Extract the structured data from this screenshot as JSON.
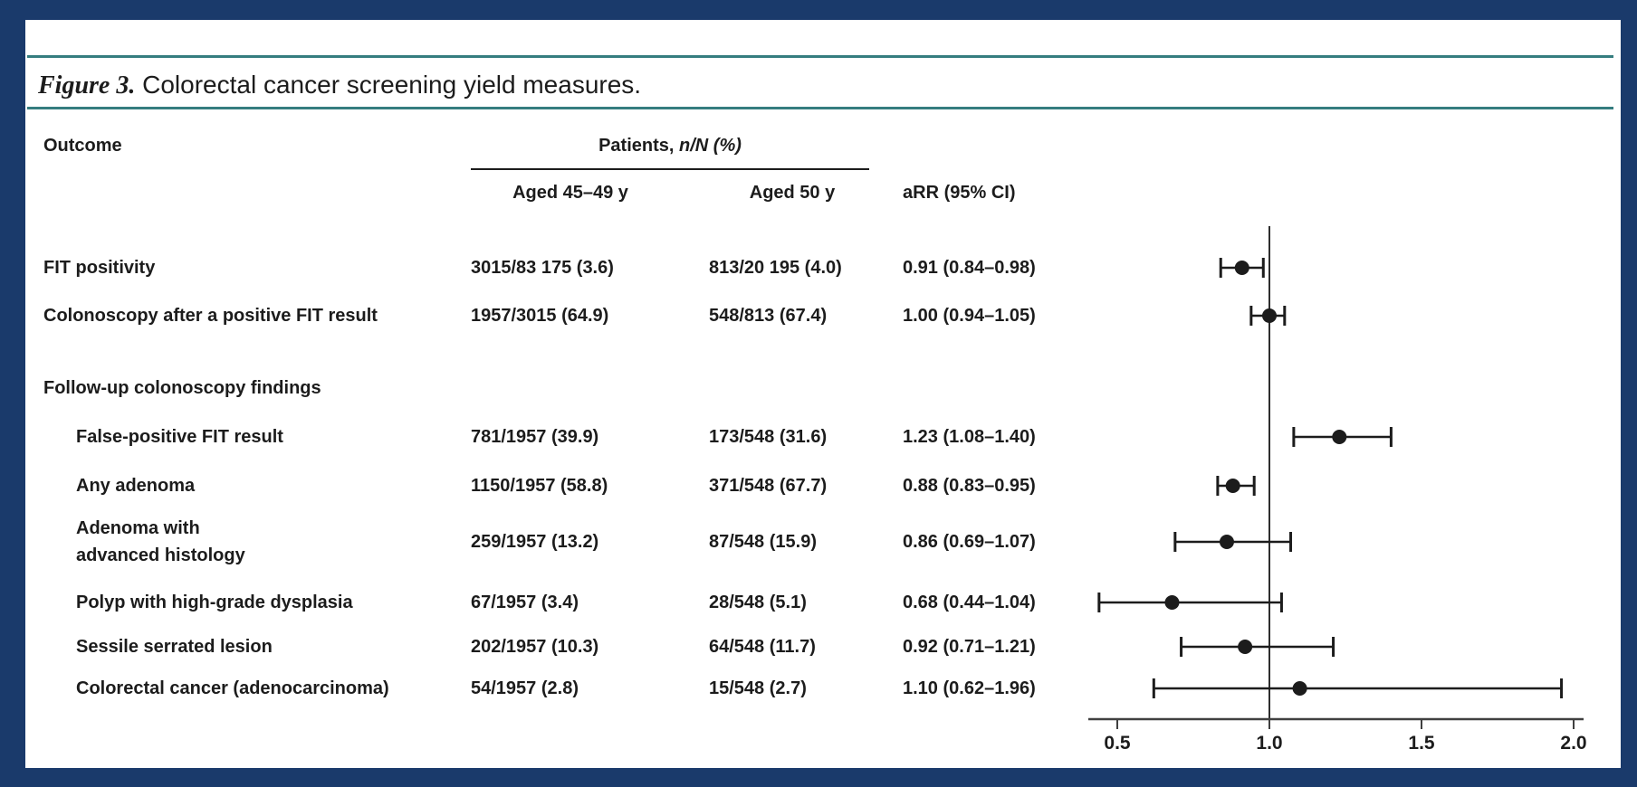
{
  "figure": {
    "label": "Figure 3.",
    "title": "Colorectal cancer screening yield measures."
  },
  "table": {
    "header": {
      "outcome": "Outcome",
      "patients_group_prefix": "Patients, ",
      "patients_group_italic": "n/N (%)",
      "aged_45_49": "Aged 45–49 y",
      "aged_50": "Aged 50 y",
      "arr": "aRR (95% CI)"
    },
    "rows": [
      {
        "type": "data",
        "indent": false,
        "label": "FIT positivity",
        "aged_45_49": "3015/83 175 (3.6)",
        "aged_50": "813/20 195 (4.0)",
        "arr": "0.91 (0.84–0.98)"
      },
      {
        "type": "data",
        "indent": false,
        "label": "Colonoscopy after a positive FIT result",
        "aged_45_49": "1957/3015 (64.9)",
        "aged_50": "548/813 (67.4)",
        "arr": "1.00 (0.94–1.05)"
      },
      {
        "type": "section",
        "label": "Follow-up colonoscopy findings"
      },
      {
        "type": "data",
        "indent": true,
        "label": "False-positive FIT result",
        "aged_45_49": "781/1957 (39.9)",
        "aged_50": "173/548 (31.6)",
        "arr": "1.23 (1.08–1.40)"
      },
      {
        "type": "data",
        "indent": true,
        "label": "Any adenoma",
        "aged_45_49": "1150/1957 (58.8)",
        "aged_50": "371/548 (67.7)",
        "arr": "0.88 (0.83–0.95)"
      },
      {
        "type": "data",
        "indent": true,
        "label": "Adenoma with\nadvanced histology",
        "aged_45_49": "259/1957 (13.2)",
        "aged_50": "87/548 (15.9)",
        "arr": "0.86 (0.69–1.07)"
      },
      {
        "type": "data",
        "indent": true,
        "label": "Polyp with high-grade dysplasia",
        "aged_45_49": "67/1957 (3.4)",
        "aged_50": "28/548 (5.1)",
        "arr": "0.68 (0.44–1.04)"
      },
      {
        "type": "data",
        "indent": true,
        "label": "Sessile serrated lesion",
        "aged_45_49": "202/1957 (10.3)",
        "aged_50": "64/548 (11.7)",
        "arr": "0.92 (0.71–1.21)"
      },
      {
        "type": "data",
        "indent": true,
        "label": "Colorectal cancer (adenocarcinoma)",
        "aged_45_49": "54/1957 (2.8)",
        "aged_50": "15/548 (2.7)",
        "arr": "1.10 (0.62–1.96)"
      }
    ]
  },
  "chart_data": {
    "type": "scatter",
    "subtype": "forest-plot",
    "title": "Figure 3. Colorectal cancer screening yield measures.",
    "xlabel": "aRR (95% CI)",
    "xlim": [
      0.4,
      2.05
    ],
    "x_ticks": [
      0.5,
      1.0,
      1.5,
      2.0
    ],
    "x_tick_labels": [
      "0.5",
      "1.0",
      "1.5",
      "2.0"
    ],
    "reference_line": 1.0,
    "grid": false,
    "legend": "none",
    "points": [
      {
        "label": "FIT positivity",
        "estimate": 0.91,
        "ci_low": 0.84,
        "ci_high": 0.98
      },
      {
        "label": "Colonoscopy after a positive FIT result",
        "estimate": 1.0,
        "ci_low": 0.94,
        "ci_high": 1.05
      },
      {
        "label": "False-positive FIT result",
        "estimate": 1.23,
        "ci_low": 1.08,
        "ci_high": 1.4
      },
      {
        "label": "Any adenoma",
        "estimate": 0.88,
        "ci_low": 0.83,
        "ci_high": 0.95
      },
      {
        "label": "Adenoma with advanced histology",
        "estimate": 0.86,
        "ci_low": 0.69,
        "ci_high": 1.07
      },
      {
        "label": "Polyp with high-grade dysplasia",
        "estimate": 0.68,
        "ci_low": 0.44,
        "ci_high": 1.04
      },
      {
        "label": "Sessile serrated lesion",
        "estimate": 0.92,
        "ci_low": 0.71,
        "ci_high": 1.21
      },
      {
        "label": "Colorectal cancer (adenocarcinoma)",
        "estimate": 1.1,
        "ci_low": 0.62,
        "ci_high": 1.96
      }
    ]
  },
  "colors": {
    "frame_navy": "#1a3a6b",
    "rule_teal": "#357d7f",
    "text": "#1c1c1c",
    "axis": "#404040",
    "marker": "#1c1c1c"
  }
}
